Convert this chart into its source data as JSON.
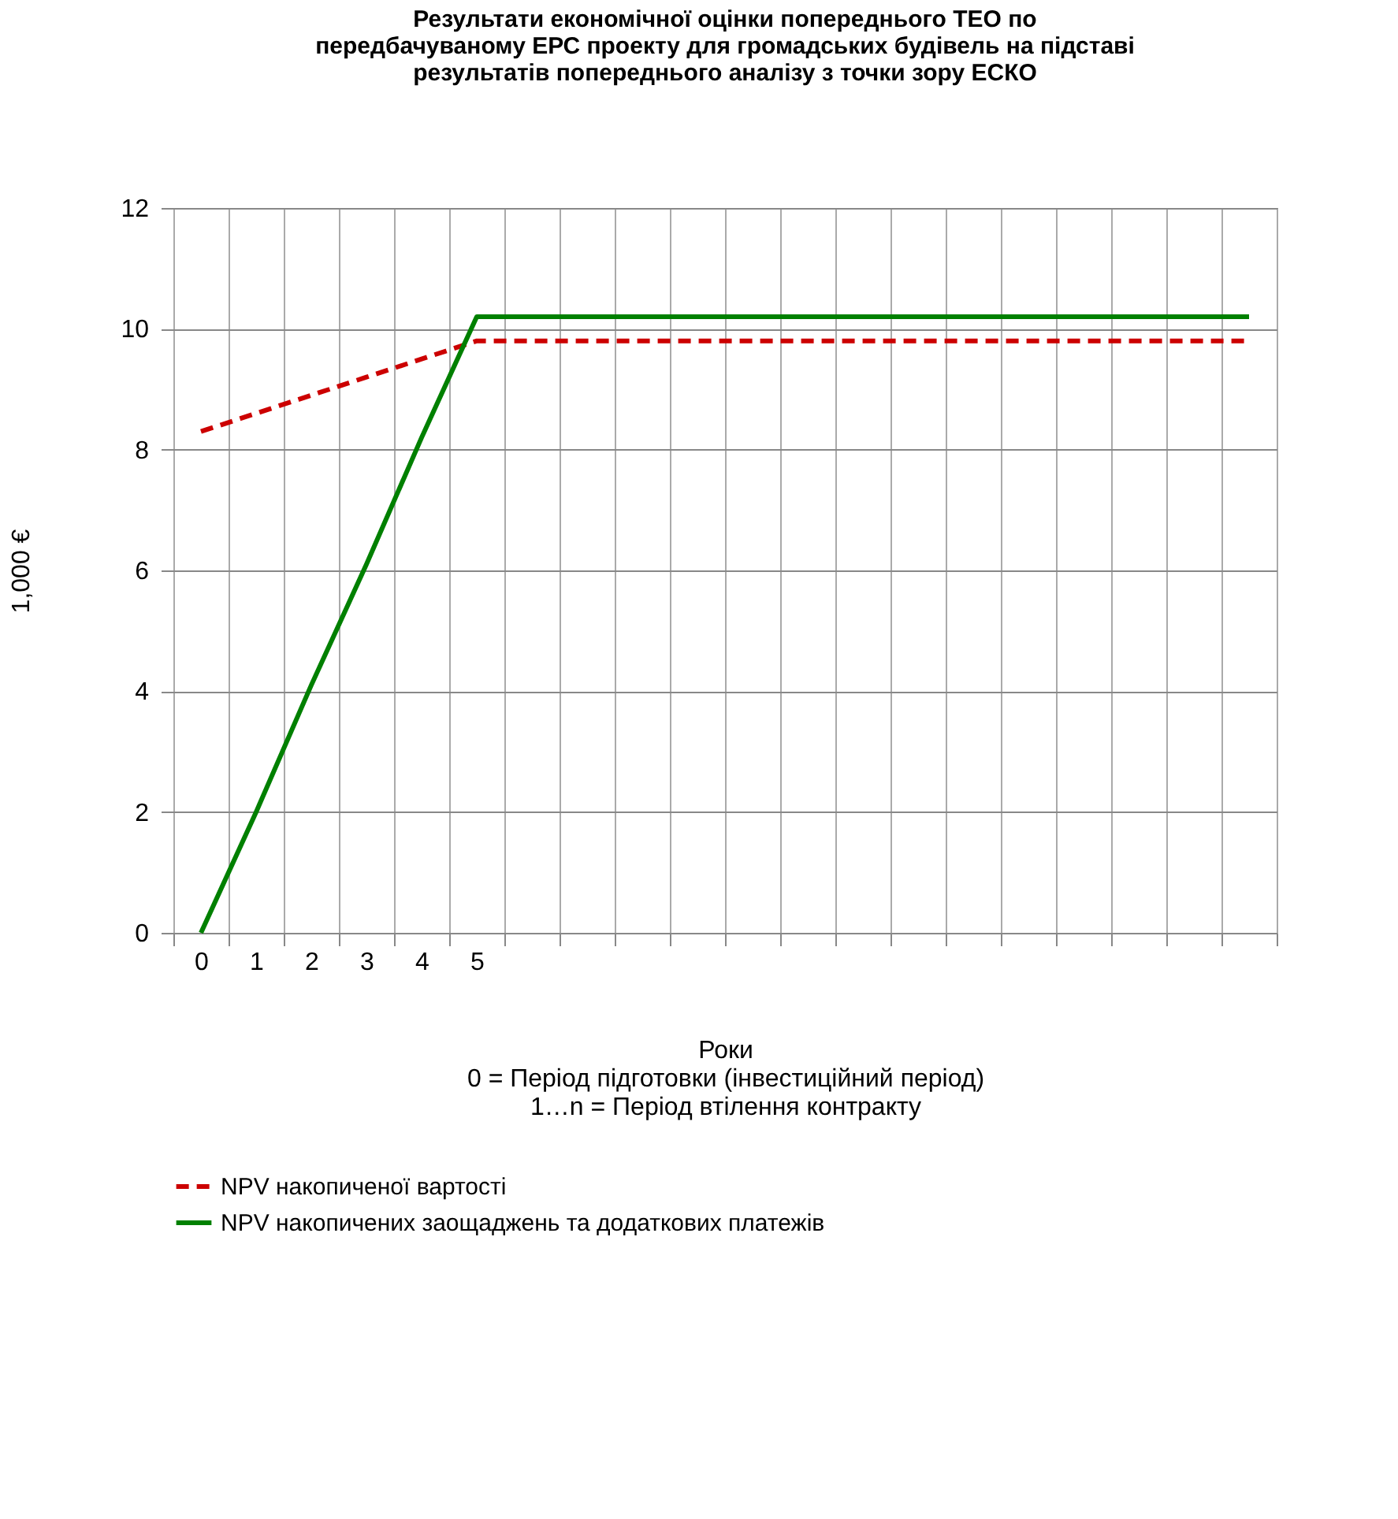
{
  "chart_data": {
    "type": "line",
    "title": [
      "Результати економічної оцінки попереднього ТЕО по",
      "передбачуваному ЕРС проекту для громадських будівель на підставі",
      "результатів попереднього аналізу з точки зору ЕСКО"
    ],
    "xlabel": [
      "Роки",
      "0 = Період підготовки (інвестиційний період)",
      "1…n = Період втілення контракту"
    ],
    "ylabel": "1,000 €",
    "categories": [
      "0",
      "1",
      "2",
      "3",
      "4",
      "5",
      null,
      null,
      null,
      null,
      null,
      null,
      null,
      null,
      null,
      null,
      null,
      null,
      null,
      null
    ],
    "series": [
      {
        "name": "NPV накопиченої вартості",
        "color": "#cc0000",
        "line_style": "dashed",
        "values": [
          8.3,
          8.6,
          8.9,
          9.2,
          9.5,
          9.8,
          9.8,
          9.8,
          9.8,
          9.8,
          9.8,
          9.8,
          9.8,
          9.8,
          9.8,
          9.8,
          9.8,
          9.8,
          9.8,
          9.8
        ]
      },
      {
        "name": "NPV накопичених заощаджень та додаткових платежів",
        "color": "#008000",
        "line_style": "solid",
        "values": [
          0,
          2,
          4.1,
          6.1,
          8.2,
          10.2,
          10.2,
          10.2,
          10.2,
          10.2,
          10.2,
          10.2,
          10.2,
          10.2,
          10.2,
          10.2,
          10.2,
          10.2,
          10.2,
          10.2
        ]
      }
    ],
    "ylim": [
      0,
      12
    ],
    "yticks": [
      0,
      2,
      4,
      6,
      8,
      10,
      12
    ],
    "grid": true,
    "legend": "bottom",
    "marker": "none"
  }
}
